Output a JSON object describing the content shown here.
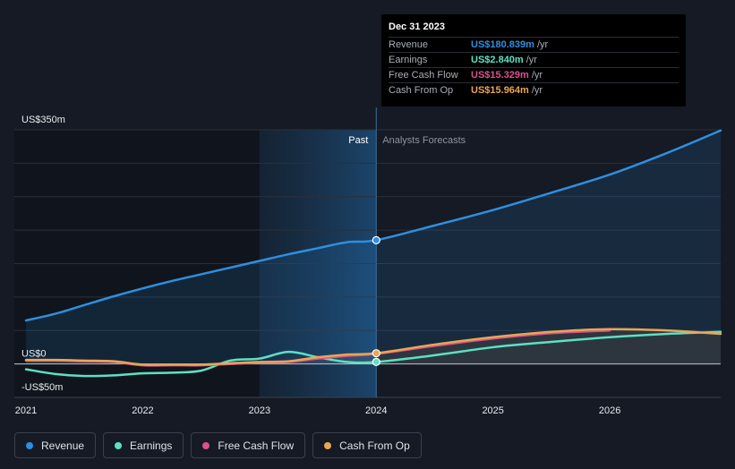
{
  "tooltip": {
    "date": "Dec 31 2023",
    "rows": [
      {
        "label": "Revenue",
        "value": "US$180.839m",
        "unit": "/yr",
        "color": "#2e8fe0"
      },
      {
        "label": "Earnings",
        "value": "US$2.840m",
        "unit": "/yr",
        "color": "#5de0c4"
      },
      {
        "label": "Free Cash Flow",
        "value": "US$15.329m",
        "unit": "/yr",
        "color": "#d9528d"
      },
      {
        "label": "Cash From Op",
        "value": "US$15.964m",
        "unit": "/yr",
        "color": "#e9a653"
      }
    ]
  },
  "regions": {
    "past": "Past",
    "forecast": "Analysts Forecasts"
  },
  "legend": [
    {
      "label": "Revenue",
      "color": "#2e8fe0"
    },
    {
      "label": "Earnings",
      "color": "#5de0c4"
    },
    {
      "label": "Free Cash Flow",
      "color": "#d9528d"
    },
    {
      "label": "Cash From Op",
      "color": "#e9a653"
    }
  ],
  "chart_data": {
    "type": "line",
    "y_tick_labels": [
      "US$350m",
      "US$0",
      "-US$50m"
    ],
    "ylim": [
      -50,
      350
    ],
    "xlim": [
      2020.9,
      2026.95
    ],
    "x_tick_labels": [
      "2021",
      "2022",
      "2023",
      "2024",
      "2025",
      "2026"
    ],
    "x_ticks": [
      2021,
      2022,
      2023,
      2024,
      2025,
      2026
    ],
    "divider_x": 2024.0,
    "highlight_start": 2023.0,
    "series": [
      {
        "name": "Revenue",
        "color": "#2e8fe0",
        "points": [
          [
            2021.0,
            65
          ],
          [
            2021.25,
            75
          ],
          [
            2021.5,
            88
          ],
          [
            2021.75,
            101
          ],
          [
            2022.0,
            113
          ],
          [
            2022.25,
            124
          ],
          [
            2022.5,
            134
          ],
          [
            2022.75,
            144
          ],
          [
            2023.0,
            154
          ],
          [
            2023.25,
            164
          ],
          [
            2023.5,
            173
          ],
          [
            2023.75,
            182
          ],
          [
            2024.0,
            185
          ],
          [
            2024.5,
            207
          ],
          [
            2025.0,
            230
          ],
          [
            2025.5,
            256
          ],
          [
            2026.0,
            283
          ],
          [
            2026.5,
            316
          ],
          [
            2026.95,
            349
          ]
        ]
      },
      {
        "name": "Earnings",
        "color": "#5de0c4",
        "points": [
          [
            2021.0,
            -8
          ],
          [
            2021.25,
            -15
          ],
          [
            2021.5,
            -18
          ],
          [
            2021.75,
            -17
          ],
          [
            2022.0,
            -14
          ],
          [
            2022.25,
            -13
          ],
          [
            2022.5,
            -10
          ],
          [
            2022.75,
            5
          ],
          [
            2023.0,
            8
          ],
          [
            2023.25,
            18
          ],
          [
            2023.5,
            10
          ],
          [
            2023.75,
            3
          ],
          [
            2024.0,
            3
          ],
          [
            2024.5,
            13
          ],
          [
            2025.0,
            25
          ],
          [
            2025.5,
            33
          ],
          [
            2026.0,
            40
          ],
          [
            2026.5,
            45
          ],
          [
            2026.95,
            48
          ]
        ]
      },
      {
        "name": "Free Cash Flow",
        "color": "#d9528d",
        "points": [
          [
            2021.0,
            5
          ],
          [
            2021.25,
            5
          ],
          [
            2021.5,
            4
          ],
          [
            2021.75,
            3
          ],
          [
            2022.0,
            -2
          ],
          [
            2022.25,
            -2
          ],
          [
            2022.5,
            -2
          ],
          [
            2022.75,
            0
          ],
          [
            2023.0,
            2
          ],
          [
            2023.25,
            3
          ],
          [
            2023.5,
            8
          ],
          [
            2023.75,
            12
          ],
          [
            2024.0,
            15
          ],
          [
            2024.5,
            27
          ],
          [
            2025.0,
            38
          ],
          [
            2025.5,
            46
          ],
          [
            2026.0,
            50
          ]
        ]
      },
      {
        "name": "Cash From Op",
        "color": "#e9a653",
        "points": [
          [
            2021.0,
            6
          ],
          [
            2021.25,
            6
          ],
          [
            2021.5,
            5
          ],
          [
            2021.75,
            4
          ],
          [
            2022.0,
            -1
          ],
          [
            2022.25,
            -1
          ],
          [
            2022.5,
            -1
          ],
          [
            2022.75,
            1
          ],
          [
            2023.0,
            3
          ],
          [
            2023.25,
            4
          ],
          [
            2023.5,
            10
          ],
          [
            2023.75,
            14
          ],
          [
            2024.0,
            16
          ],
          [
            2024.5,
            29
          ],
          [
            2025.0,
            40
          ],
          [
            2025.5,
            48
          ],
          [
            2026.0,
            52
          ],
          [
            2026.5,
            50
          ],
          [
            2026.95,
            45
          ]
        ]
      }
    ],
    "markers": [
      {
        "series": "Revenue",
        "x": 2024.0,
        "y": 185
      },
      {
        "series": "Cash From Op",
        "x": 2024.0,
        "y": 16
      },
      {
        "series": "Earnings",
        "x": 2024.0,
        "y": 3
      }
    ]
  }
}
